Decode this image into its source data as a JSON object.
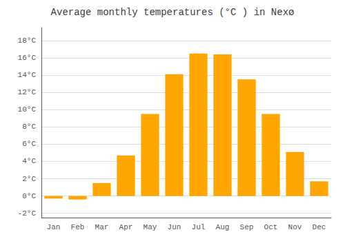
{
  "chart_data": {
    "type": "bar",
    "title": "Average monthly temperatures (°C ) in Nexø",
    "categories": [
      "Jan",
      "Feb",
      "Mar",
      "Apr",
      "May",
      "Jun",
      "Jul",
      "Aug",
      "Sep",
      "Oct",
      "Nov",
      "Dec"
    ],
    "values": [
      -0.3,
      -0.4,
      1.5,
      4.7,
      9.5,
      14.1,
      16.5,
      16.4,
      13.5,
      9.5,
      5.1,
      1.7
    ],
    "color": "#FFA500",
    "ylim": [
      -2.5,
      19.5
    ],
    "yticks": [
      {
        "value": -2,
        "label": "-2°C"
      },
      {
        "value": 0,
        "label": "0°C"
      },
      {
        "value": 2,
        "label": "2°C"
      },
      {
        "value": 4,
        "label": "4°C"
      },
      {
        "value": 6,
        "label": "6°C"
      },
      {
        "value": 8,
        "label": "8°C"
      },
      {
        "value": 10,
        "label": "10°C"
      },
      {
        "value": 12,
        "label": "12°C"
      },
      {
        "value": 14,
        "label": "14°C"
      },
      {
        "value": 16,
        "label": "16°C"
      },
      {
        "value": 18,
        "label": "18°C"
      }
    ],
    "grid": true
  }
}
